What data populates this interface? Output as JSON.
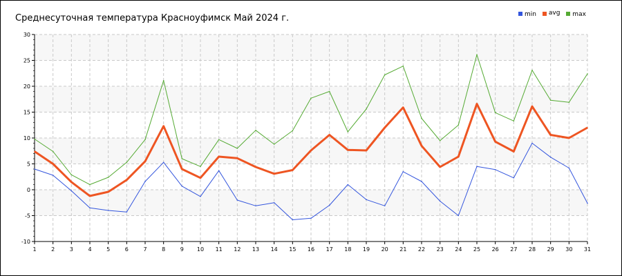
{
  "chart_data": {
    "type": "line",
    "title": "Среднесуточная температура Красноуфимск  Май 2024 г.",
    "xlabel": "",
    "ylabel": "",
    "x": [
      1,
      2,
      3,
      4,
      5,
      6,
      7,
      8,
      9,
      10,
      11,
      12,
      13,
      14,
      15,
      16,
      17,
      18,
      19,
      20,
      21,
      22,
      23,
      24,
      25,
      26,
      27,
      28,
      29,
      30,
      31
    ],
    "x_ticks": [
      "1",
      "2",
      "3",
      "4",
      "5",
      "6",
      "7",
      "8",
      "9",
      "10",
      "11",
      "12",
      "13",
      "14",
      "15",
      "16",
      "17",
      "18",
      "19",
      "20",
      "21",
      "22",
      "23",
      "24",
      "25",
      "26",
      "27",
      "28",
      "29",
      "30",
      "31"
    ],
    "y_ticks": [
      "30",
      "25",
      "20",
      "15",
      "10",
      "5",
      "0",
      "-5",
      "-10"
    ],
    "ylim": [
      -10,
      30
    ],
    "grid": true,
    "legend_position": "top-right",
    "series": [
      {
        "name": "min",
        "color": "#3355dd",
        "values": [
          4.0,
          2.8,
          -0.2,
          -3.5,
          -4.0,
          -4.3,
          1.6,
          5.3,
          0.7,
          -1.3,
          3.7,
          -2.0,
          -3.1,
          -2.5,
          -5.8,
          -5.5,
          -3.0,
          1.0,
          -1.9,
          -3.1,
          3.5,
          1.6,
          -2.2,
          -5.0,
          4.5,
          3.9,
          2.3,
          9.0,
          6.3,
          4.2,
          -2.6
        ]
      },
      {
        "name": "avg",
        "color": "#ee5522",
        "values": [
          7.4,
          5.0,
          1.5,
          -1.2,
          -0.4,
          1.9,
          5.5,
          12.3,
          4.0,
          2.3,
          6.4,
          6.1,
          4.4,
          3.1,
          3.8,
          7.6,
          10.6,
          7.7,
          7.6,
          12.0,
          15.9,
          8.5,
          4.4,
          6.4,
          16.6,
          9.3,
          7.4,
          16.1,
          10.6,
          10.0,
          12.0
        ]
      },
      {
        "name": "max",
        "color": "#55aa33",
        "values": [
          9.8,
          7.4,
          2.9,
          1.0,
          2.4,
          5.3,
          9.7,
          21.1,
          6.0,
          4.5,
          9.7,
          8.0,
          11.5,
          8.8,
          11.4,
          17.7,
          19.0,
          11.2,
          15.6,
          22.2,
          23.9,
          13.8,
          9.5,
          12.5,
          26.1,
          14.9,
          13.3,
          23.1,
          17.3,
          16.9,
          22.4
        ]
      }
    ]
  }
}
